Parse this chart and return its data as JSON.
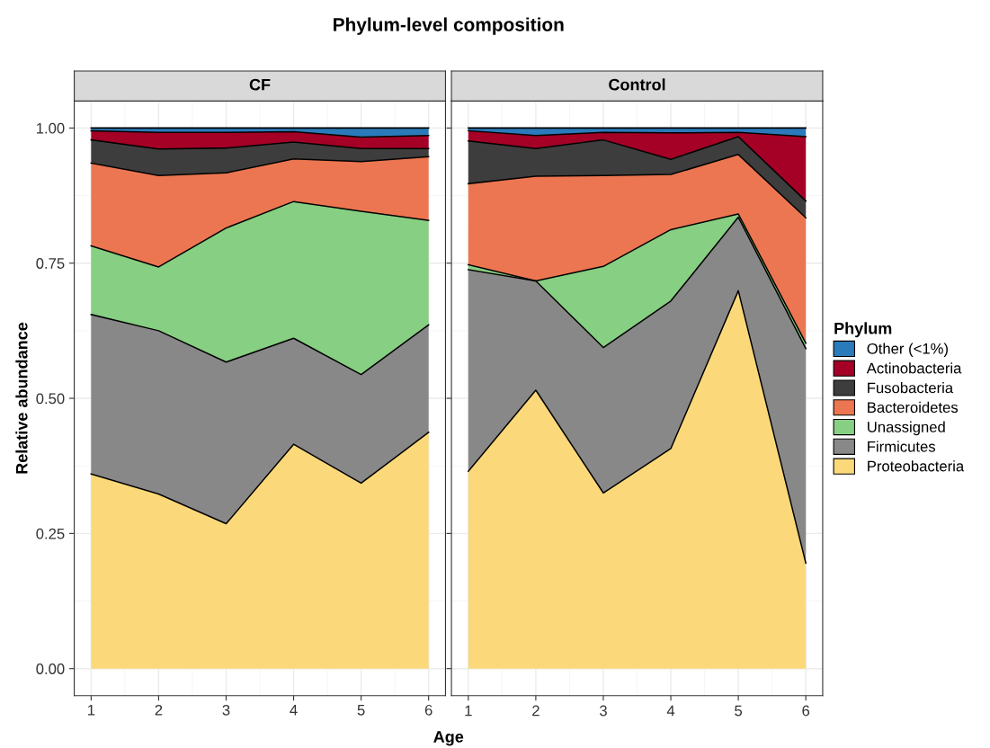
{
  "chart_data": [
    {
      "type": "area",
      "stacked": true,
      "title": "Phylum-level composition",
      "subtitle": "CF",
      "xlabel": "Age",
      "ylabel": "Relative abundance",
      "legend": "right",
      "legend_title": "Phylum",
      "grid": true,
      "x": [
        1,
        2,
        3,
        4,
        5,
        6
      ],
      "xlim": [
        0.75,
        6.25
      ],
      "xticks": [
        1,
        2,
        3,
        4,
        5,
        6
      ],
      "ylim": [
        -0.05,
        1.05
      ],
      "yticks": [
        {
          "value": 0,
          "label": "0.00"
        },
        {
          "value": 0.25,
          "label": "0.25"
        },
        {
          "value": 0.5,
          "label": "0.50"
        },
        {
          "value": 0.75,
          "label": "0.75"
        },
        {
          "value": 1,
          "label": "1.00"
        }
      ],
      "series": [
        {
          "name": "Proteobacteria",
          "color": "#fbd97a",
          "values": [
            0.36,
            0.323,
            0.268,
            0.415,
            0.343,
            0.437
          ]
        },
        {
          "name": "Firmicutes",
          "color": "#888888",
          "values": [
            0.295,
            0.302,
            0.299,
            0.196,
            0.201,
            0.199
          ]
        },
        {
          "name": "Unassigned",
          "color": "#87cf82",
          "values": [
            0.127,
            0.118,
            0.248,
            0.253,
            0.302,
            0.193
          ]
        },
        {
          "name": "Bacteroidetes",
          "color": "#ec7651",
          "values": [
            0.153,
            0.169,
            0.102,
            0.079,
            0.092,
            0.118
          ]
        },
        {
          "name": "Fusobacteria",
          "color": "#3d3d3d",
          "values": [
            0.043,
            0.049,
            0.046,
            0.031,
            0.024,
            0.015
          ]
        },
        {
          "name": "Actinobacteria",
          "color": "#a50026",
          "values": [
            0.017,
            0.031,
            0.029,
            0.019,
            0.021,
            0.024
          ]
        },
        {
          "name": "Other (<1%)",
          "color": "#2b7bba",
          "values": [
            0.005,
            0.008,
            0.008,
            0.007,
            0.017,
            0.014
          ]
        }
      ]
    },
    {
      "type": "area",
      "stacked": true,
      "subtitle": "Control",
      "grid": true,
      "tick_labels": "x",
      "x": [
        1,
        2,
        3,
        4,
        5,
        6
      ],
      "xlim": [
        0.75,
        6.25
      ],
      "xticks": [
        1,
        2,
        3,
        4,
        5,
        6
      ],
      "ylim": [
        -0.05,
        1.05
      ],
      "yticks": [
        0,
        0.25,
        0.5,
        0.75,
        1
      ],
      "series": [
        {
          "color": "#fbd97a",
          "values": [
            0.365,
            0.515,
            0.325,
            0.407,
            0.699,
            0.195
          ]
        },
        {
          "color": "#888888",
          "values": [
            0.373,
            0.202,
            0.269,
            0.273,
            0.136,
            0.397
          ]
        },
        {
          "color": "#87cf82",
          "values": [
            0.009,
            0.0,
            0.15,
            0.132,
            0.006,
            0.01
          ]
        },
        {
          "color": "#ec7651",
          "values": [
            0.15,
            0.194,
            0.168,
            0.102,
            0.11,
            0.232
          ]
        },
        {
          "color": "#3d3d3d",
          "values": [
            0.079,
            0.051,
            0.066,
            0.028,
            0.033,
            0.031
          ]
        },
        {
          "color": "#a50026",
          "values": [
            0.019,
            0.024,
            0.014,
            0.049,
            0.008,
            0.119
          ]
        },
        {
          "color": "#2b7bba",
          "values": [
            0.005,
            0.014,
            0.008,
            0.009,
            0.008,
            0.016
          ]
        }
      ]
    }
  ]
}
